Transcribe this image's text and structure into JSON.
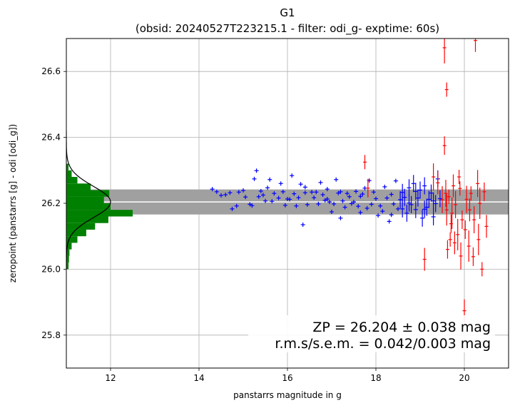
{
  "chart_data": {
    "type": "scatter",
    "title": "G1",
    "subtitle": "(obsid: 20240527T223215.1 - filter: odi_g- exptime: 60s)",
    "xlabel": "panstarrs magnitude in g",
    "ylabel": "zeropoint (panstarrs [g] - odi [odi_g])",
    "xlim": [
      11.0,
      21.0
    ],
    "ylim": [
      25.7,
      26.7
    ],
    "xticks": [
      "12",
      "14",
      "16",
      "18",
      "20"
    ],
    "yticks": [
      "25.8",
      "26.0",
      "26.2",
      "26.4",
      "26.6"
    ],
    "grid": true,
    "zeropoint": 26.204,
    "band_half_width": 0.038,
    "annotation_line1": "ZP = 26.204 ± 0.038 mag",
    "annotation_line2": "r.m.s/s.e.m. = 0.042/0.003 mag",
    "colors": {
      "used_points": "#0000ff",
      "rejected_points": "#ff0000",
      "histogram": "#008000",
      "band": "#a0a0a0",
      "zp_line": "#ffffff",
      "gaussian": "#000000"
    },
    "histogram_bins": [
      {
        "y0": 26.0,
        "y1": 26.02,
        "count": 0.05
      },
      {
        "y0": 26.02,
        "y1": 26.04,
        "count": 0.06
      },
      {
        "y0": 26.04,
        "y1": 26.06,
        "count": 0.07
      },
      {
        "y0": 26.06,
        "y1": 26.08,
        "count": 0.12
      },
      {
        "y0": 26.08,
        "y1": 26.1,
        "count": 0.25
      },
      {
        "y0": 26.1,
        "y1": 26.12,
        "count": 0.45
      },
      {
        "y0": 26.12,
        "y1": 26.14,
        "count": 0.65
      },
      {
        "y0": 26.14,
        "y1": 26.16,
        "count": 0.95
      },
      {
        "y0": 26.16,
        "y1": 26.18,
        "count": 1.5
      },
      {
        "y0": 26.18,
        "y1": 26.2,
        "count": 1.0
      },
      {
        "y0": 26.2,
        "y1": 26.22,
        "count": 0.85
      },
      {
        "y0": 26.22,
        "y1": 26.24,
        "count": 0.97
      },
      {
        "y0": 26.24,
        "y1": 26.26,
        "count": 0.55
      },
      {
        "y0": 26.26,
        "y1": 26.28,
        "count": 0.25
      },
      {
        "y0": 26.28,
        "y1": 26.3,
        "count": 0.12
      },
      {
        "y0": 26.3,
        "y1": 26.32,
        "count": 0.05
      }
    ],
    "series": [
      {
        "points": [
          [
            14.3,
            26.243
          ],
          [
            14.4,
            26.235
          ],
          [
            14.5,
            26.224
          ],
          [
            14.6,
            26.226
          ],
          [
            14.7,
            26.232
          ],
          [
            14.75,
            26.183
          ],
          [
            14.85,
            26.192
          ],
          [
            14.9,
            26.234
          ],
          [
            15.0,
            26.239
          ],
          [
            15.05,
            26.219
          ],
          [
            15.15,
            26.197
          ],
          [
            15.2,
            26.193
          ],
          [
            15.25,
            26.274
          ],
          [
            15.3,
            26.299
          ],
          [
            15.35,
            26.22
          ],
          [
            15.4,
            26.237
          ],
          [
            15.45,
            26.225
          ],
          [
            15.5,
            26.207
          ],
          [
            15.55,
            26.247
          ],
          [
            15.6,
            26.272
          ],
          [
            15.65,
            26.206
          ],
          [
            15.7,
            26.23
          ],
          [
            15.8,
            26.216
          ],
          [
            15.85,
            26.26
          ],
          [
            15.9,
            26.235
          ],
          [
            15.95,
            26.194
          ],
          [
            16.0,
            26.213
          ],
          [
            16.05,
            26.212
          ],
          [
            16.1,
            26.284
          ],
          [
            16.15,
            26.229
          ],
          [
            16.2,
            26.192
          ],
          [
            16.25,
            26.217
          ],
          [
            16.3,
            26.258
          ],
          [
            16.35,
            26.135
          ],
          [
            16.4,
            26.249
          ],
          [
            16.45,
            26.196
          ],
          [
            16.55,
            26.234
          ],
          [
            16.6,
            26.217
          ],
          [
            16.65,
            26.234
          ],
          [
            16.7,
            26.198
          ],
          [
            16.75,
            26.263
          ],
          [
            16.8,
            26.226
          ],
          [
            16.85,
            26.209
          ],
          [
            16.9,
            26.213
          ],
          [
            16.95,
            26.204
          ],
          [
            17.0,
            26.174
          ],
          [
            17.05,
            26.198
          ],
          [
            17.1,
            26.272
          ],
          [
            17.15,
            26.231
          ],
          [
            17.2,
            26.155
          ],
          [
            17.25,
            26.207
          ],
          [
            17.3,
            26.188
          ],
          [
            17.35,
            26.23
          ],
          [
            17.4,
            26.22
          ],
          [
            17.45,
            26.199
          ],
          [
            17.5,
            26.204
          ],
          [
            17.55,
            26.236
          ],
          [
            17.6,
            26.191
          ],
          [
            17.65,
            26.172
          ],
          [
            17.7,
            26.228
          ],
          [
            17.75,
            26.246
          ],
          [
            17.8,
            26.185
          ],
          [
            17.85,
            26.269
          ],
          [
            17.9,
            26.197
          ],
          [
            17.95,
            26.234
          ],
          [
            18.0,
            26.214
          ],
          [
            18.05,
            26.163
          ],
          [
            18.1,
            26.192
          ],
          [
            18.15,
            26.176
          ],
          [
            18.2,
            26.25
          ],
          [
            18.25,
            26.216
          ],
          [
            18.3,
            26.145
          ],
          [
            18.35,
            26.227
          ],
          [
            18.4,
            26.198
          ],
          [
            18.45,
            26.268
          ],
          [
            18.5,
            26.183
          ],
          [
            18.55,
            26.211
          ],
          [
            18.6,
            26.233
          ],
          [
            18.65,
            26.218
          ],
          [
            18.7,
            26.17
          ],
          [
            18.75,
            26.247
          ],
          [
            18.8,
            26.196
          ],
          [
            18.85,
            26.26
          ],
          [
            18.9,
            26.181
          ],
          [
            18.95,
            26.216
          ],
          [
            19.0,
            26.24
          ],
          [
            19.05,
            26.155
          ],
          [
            19.1,
            26.253
          ],
          [
            19.15,
            26.188
          ],
          [
            19.2,
            26.212
          ],
          [
            19.25,
            26.231
          ],
          [
            19.3,
            26.159
          ],
          [
            19.35,
            26.199
          ],
          [
            19.4,
            26.274
          ],
          [
            19.45,
            26.214
          ],
          [
            16.4,
            26.232
          ],
          [
            16.9,
            26.243
          ],
          [
            17.2,
            26.235
          ],
          [
            17.65,
            26.221
          ],
          [
            18.6,
            26.183
          ],
          [
            18.9,
            26.236
          ],
          [
            19.3,
            26.207
          ],
          [
            19.1,
            26.182
          ],
          [
            18.35,
            26.165
          ],
          [
            18.75,
            26.201
          ]
        ]
      },
      {
        "points": [
          [
            17.75,
            26.325
          ],
          [
            17.82,
            26.246
          ],
          [
            19.1,
            26.03
          ],
          [
            19.3,
            26.28
          ],
          [
            19.55,
            26.672
          ],
          [
            19.6,
            26.545
          ],
          [
            19.55,
            26.375
          ],
          [
            19.4,
            26.262
          ],
          [
            19.5,
            26.211
          ],
          [
            19.6,
            26.18
          ],
          [
            19.65,
            26.22
          ],
          [
            19.7,
            26.138
          ],
          [
            19.75,
            26.253
          ],
          [
            19.8,
            26.196
          ],
          [
            19.85,
            26.105
          ],
          [
            19.9,
            26.245
          ],
          [
            19.95,
            26.15
          ],
          [
            20.0,
            25.874
          ],
          [
            20.05,
            26.212
          ],
          [
            20.1,
            26.07
          ],
          [
            20.15,
            26.23
          ],
          [
            20.2,
            26.038
          ],
          [
            20.25,
            26.694
          ],
          [
            20.3,
            26.26
          ],
          [
            20.35,
            26.2
          ],
          [
            20.4,
            26.0
          ],
          [
            20.45,
            26.235
          ],
          [
            20.5,
            26.13
          ],
          [
            19.58,
            26.23
          ],
          [
            19.72,
            26.17
          ],
          [
            19.88,
            26.28
          ],
          [
            20.02,
            26.12
          ],
          [
            20.12,
            26.18
          ],
          [
            20.22,
            26.15
          ],
          [
            20.32,
            26.09
          ],
          [
            19.68,
            26.09
          ],
          [
            19.62,
            26.06
          ],
          [
            19.78,
            26.08
          ],
          [
            19.92,
            26.04
          ]
        ]
      }
    ]
  }
}
